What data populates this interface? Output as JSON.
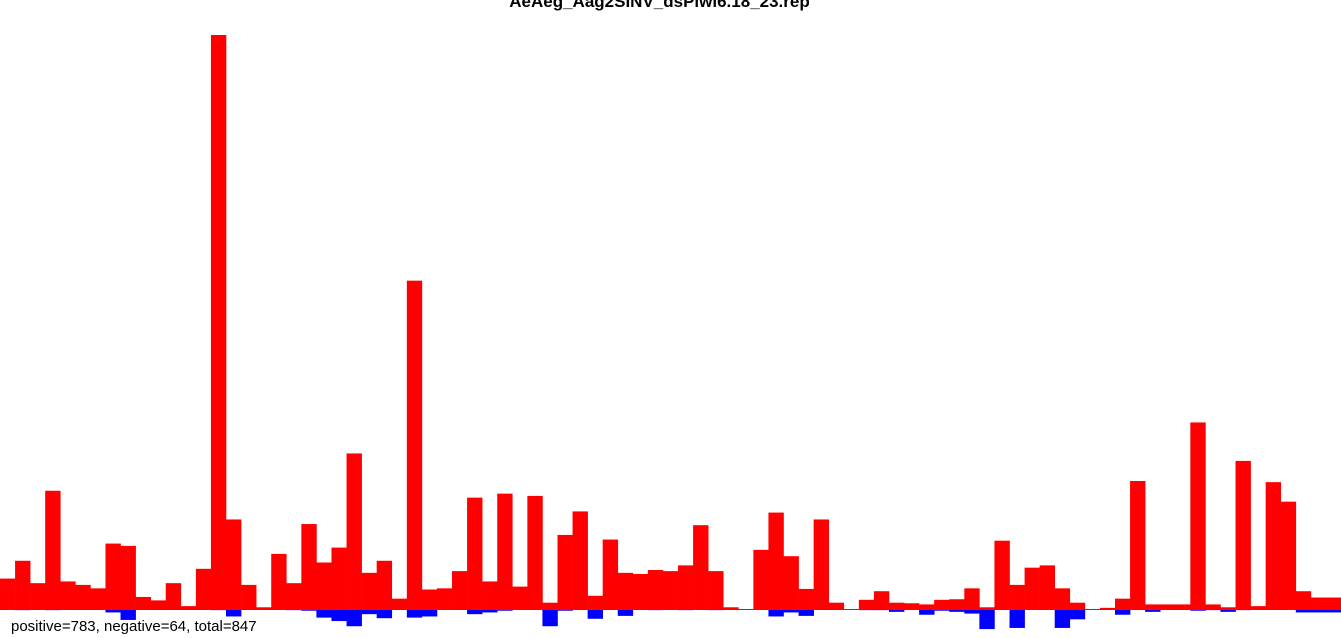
{
  "chart_data": {
    "type": "bar",
    "title": "AeAeg_Aag2SINV_dsPiwi6.18_23.rep",
    "summary": "positive=783, negative=64, total=847",
    "colors": {
      "positive": "#ff0000",
      "negative": "#0000ff"
    },
    "xlabel": "",
    "ylabel": "",
    "grid": false,
    "ylim": [
      -3.5,
      100
    ],
    "positive": [
      5.3,
      8.4,
      4.5,
      20.6,
      4.8,
      4.2,
      3.6,
      11.4,
      11.0,
      2.1,
      1.5,
      4.5,
      0.5,
      7.0,
      100.0,
      15.6,
      4.2,
      0.3,
      9.6,
      4.5,
      14.8,
      8.1,
      10.7,
      27.1,
      6.3,
      8.4,
      1.8,
      57.2,
      3.4,
      3.6,
      6.6,
      19.4,
      4.8,
      20.1,
      3.9,
      19.7,
      1.1,
      12.9,
      17.0,
      2.3,
      12.1,
      6.3,
      6.1,
      6.8,
      6.6,
      7.6,
      14.6,
      6.6,
      0.3,
      0,
      10.3,
      16.8,
      9.2,
      3.5,
      15.6,
      1.1,
      0,
      1.6,
      3.1,
      1.1,
      1.0,
      0.8,
      1.6,
      1.7,
      3.6,
      0.3,
      11.9,
      4.2,
      7.2,
      7.6,
      3.6,
      1.1,
      0,
      0.2,
      1.8,
      22.3,
      0.8,
      0.8,
      0.8,
      32.5,
      0.8,
      0.3,
      25.8,
      0.5,
      22.1,
      18.7,
      3.1,
      2.0,
      2.0
    ],
    "negative": [
      0,
      0.2,
      0,
      0.2,
      0,
      0,
      0,
      0.6,
      1.9,
      0,
      0,
      0,
      0,
      0,
      0.2,
      1.3,
      0,
      0,
      0,
      0.2,
      0.3,
      1.5,
      2.1,
      3.0,
      0.9,
      1.6,
      0,
      1.5,
      1.3,
      0,
      0,
      0.9,
      0.6,
      0.3,
      0,
      0,
      3.0,
      0.3,
      0,
      1.7,
      0,
      1.2,
      0,
      0.2,
      0,
      0.2,
      0,
      0.2,
      0,
      0,
      0,
      1.3,
      0.6,
      1.2,
      0,
      0,
      0,
      0.2,
      0.2,
      0.5,
      0,
      1.0,
      0.3,
      0.5,
      0.8,
      3.5,
      0,
      3.3,
      0,
      0,
      3.3,
      1.8,
      0,
      0,
      1.0,
      0,
      0.5,
      0,
      0,
      0.3,
      0.2,
      0.5,
      0.2,
      0,
      0,
      0,
      0.6,
      0.6,
      0.6
    ]
  }
}
